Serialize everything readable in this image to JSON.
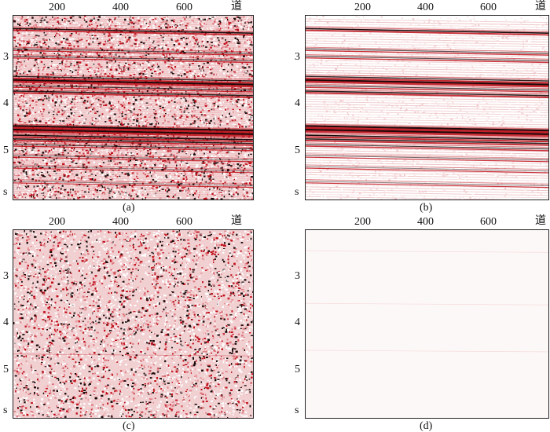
{
  "panels": [
    {
      "id": "a",
      "caption": "(a)",
      "x_ticks": [
        "200",
        "400",
        "600"
      ],
      "x_unit": "道",
      "y_ticks": [
        "3",
        "4",
        "5"
      ],
      "y_unit": "s",
      "content": "noisy-with-reflectors"
    },
    {
      "id": "b",
      "caption": "(b)",
      "x_ticks": [
        "200",
        "400",
        "600"
      ],
      "x_unit": "道",
      "y_ticks": [
        "3",
        "4",
        "5"
      ],
      "y_unit": "s",
      "content": "denoised-reflectors"
    },
    {
      "id": "c",
      "caption": "(c)",
      "x_ticks": [
        "200",
        "400",
        "600"
      ],
      "x_unit": "道",
      "y_ticks": [
        "3",
        "4",
        "5"
      ],
      "y_unit": "s",
      "content": "random-noise"
    },
    {
      "id": "d",
      "caption": "(d)",
      "x_ticks": [
        "200",
        "400",
        "600"
      ],
      "x_unit": "道",
      "y_ticks": [
        "3",
        "4",
        "5"
      ],
      "y_unit": "s",
      "content": "near-blank-residual"
    }
  ],
  "colors": {
    "wiggle": "#c0101a",
    "dark": "#1a0a0a",
    "pink": "#e8a0a4",
    "background": "#ffffff"
  }
}
